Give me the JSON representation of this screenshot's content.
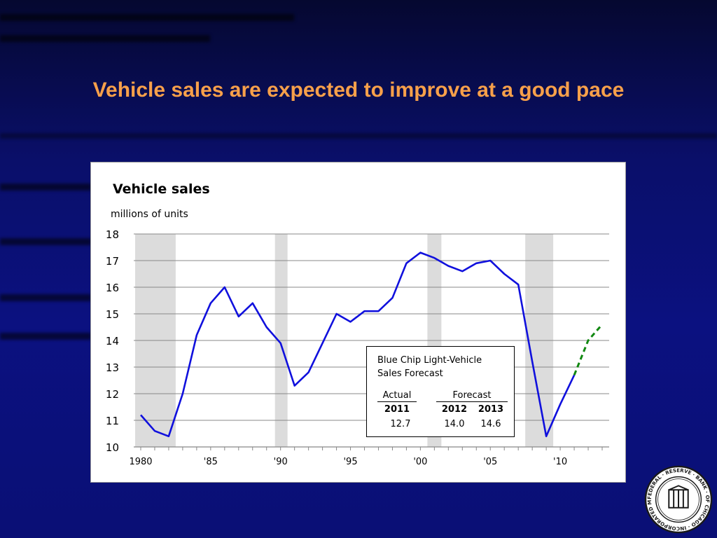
{
  "slide": {
    "title": "Vehicle sales are expected to improve at a good pace"
  },
  "chart_data": {
    "type": "line",
    "title": "Vehicle sales",
    "ylabel": "millions of units",
    "xlabel": "",
    "ylim": [
      10,
      18
    ],
    "xlim": [
      1979.5,
      2013.5
    ],
    "yticks": [
      10,
      11,
      12,
      13,
      14,
      15,
      16,
      17,
      18
    ],
    "xticks": [
      {
        "x": 1980,
        "label": "1980"
      },
      {
        "x": 1985,
        "label": "'85"
      },
      {
        "x": 1990,
        "label": "'90"
      },
      {
        "x": 1995,
        "label": "'95"
      },
      {
        "x": 2000,
        "label": "'00"
      },
      {
        "x": 2005,
        "label": "'05"
      },
      {
        "x": 2010,
        "label": "'10"
      }
    ],
    "grid": true,
    "recession_shading": [
      [
        1979.6,
        1982.5
      ],
      [
        1989.6,
        1990.5
      ],
      [
        2000.5,
        2001.5
      ],
      [
        2007.5,
        2009.5
      ]
    ],
    "series": [
      {
        "style": "solid",
        "color": "#1010dd",
        "x": [
          1980,
          1981,
          1982,
          1983,
          1984,
          1985,
          1986,
          1987,
          1988,
          1989,
          1990,
          1991,
          1992,
          1993,
          1994,
          1995,
          1996,
          1997,
          1998,
          1999,
          2000,
          2001,
          2002,
          2003,
          2004,
          2005,
          2006,
          2007,
          2008,
          2009,
          2010,
          2011
        ],
        "values": [
          11.2,
          10.6,
          10.4,
          12.0,
          14.2,
          15.4,
          16.0,
          14.9,
          15.4,
          14.5,
          13.9,
          12.3,
          12.8,
          13.9,
          15.0,
          14.7,
          15.1,
          15.1,
          15.6,
          16.9,
          17.3,
          17.1,
          16.8,
          16.6,
          16.9,
          17.0,
          16.5,
          16.1,
          13.2,
          10.4,
          11.6,
          12.7
        ]
      },
      {
        "style": "dashed",
        "color": "#118811",
        "x": [
          2011,
          2012,
          2013
        ],
        "values": [
          12.7,
          14.0,
          14.6
        ]
      }
    ],
    "annotation": {
      "title_line1": "Blue Chip Light-Vehicle",
      "title_line2": "Sales Forecast",
      "actual_label": "Actual",
      "forecast_label": "Forecast",
      "years": [
        "2011",
        "2012",
        "2013"
      ],
      "values": [
        "12.7",
        "14.0",
        "14.6"
      ]
    }
  },
  "seal": {
    "outer_text": "FEDERAL · RESERVE · BANK · OF CHICAGO · INCORPORATED MAY 18, 1914",
    "colors": {
      "ring": "#1a1a1a",
      "fill": "#ffffff"
    }
  }
}
